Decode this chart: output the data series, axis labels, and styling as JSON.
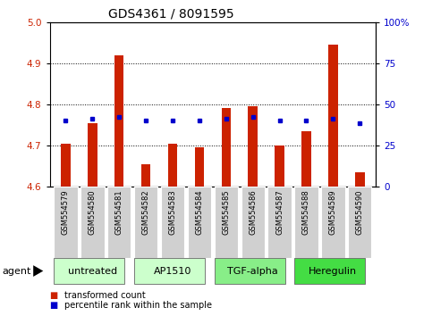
{
  "title": "GDS4361 / 8091595",
  "samples": [
    "GSM554579",
    "GSM554580",
    "GSM554581",
    "GSM554582",
    "GSM554583",
    "GSM554584",
    "GSM554585",
    "GSM554586",
    "GSM554587",
    "GSM554588",
    "GSM554589",
    "GSM554590"
  ],
  "red_values": [
    4.705,
    4.755,
    4.92,
    4.655,
    4.705,
    4.695,
    4.79,
    4.795,
    4.7,
    4.735,
    4.945,
    4.635
  ],
  "blue_values": [
    4.76,
    4.765,
    4.77,
    4.76,
    4.76,
    4.76,
    4.765,
    4.77,
    4.76,
    4.76,
    4.765,
    4.755
  ],
  "ylim": [
    4.6,
    5.0
  ],
  "yticks_left": [
    4.6,
    4.7,
    4.8,
    4.9,
    5.0
  ],
  "yticks_right": [
    0,
    25,
    50,
    75,
    100
  ],
  "ytick_right_labels": [
    "0",
    "25",
    "50",
    "75",
    "100%"
  ],
  "grid_lines": [
    4.7,
    4.8,
    4.9
  ],
  "bar_color": "#cc2200",
  "dot_color": "#0000cc",
  "base": 4.6,
  "groups": [
    {
      "label": "untreated",
      "start": 0,
      "end": 3,
      "color": "#ccffcc"
    },
    {
      "label": "AP1510",
      "start": 3,
      "end": 6,
      "color": "#ccffcc"
    },
    {
      "label": "TGF-alpha",
      "start": 6,
      "end": 9,
      "color": "#88ee88"
    },
    {
      "label": "Heregulin",
      "start": 9,
      "end": 12,
      "color": "#44dd44"
    }
  ],
  "legend_red_label": "transformed count",
  "legend_blue_label": "percentile rank within the sample",
  "agent_label": "agent",
  "left_tick_color": "#cc2200",
  "right_tick_color": "#0000cc",
  "title_fontsize": 10,
  "tick_fontsize": 7.5,
  "label_fontsize": 6,
  "group_fontsize": 8,
  "bar_width": 0.35
}
